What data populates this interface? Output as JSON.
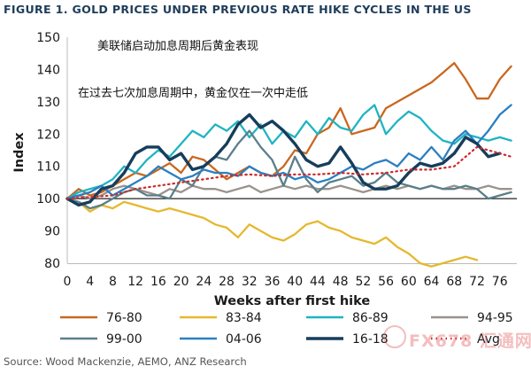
{
  "figure_title": "FIGURE 1. GOLD PRICES UNDER PREVIOUS RATE HIKE CYCLES IN THE US",
  "source": "Source: Wood Mackenzie, AEMO, ANZ Research",
  "watermark": "FX678 汇通网",
  "chart_data": {
    "type": "line",
    "title": "FIGURE 1. GOLD PRICES UNDER PREVIOUS RATE HIKE CYCLES IN THE US",
    "xlabel": "Weeks after first hike",
    "ylabel": "Index",
    "xlim": [
      0,
      79
    ],
    "ylim": [
      80,
      150
    ],
    "xticks": [
      0,
      4,
      8,
      12,
      16,
      20,
      24,
      28,
      32,
      36,
      40,
      44,
      48,
      52,
      56,
      60,
      64,
      68,
      72,
      76
    ],
    "yticks": [
      80,
      90,
      100,
      110,
      120,
      130,
      140,
      150
    ],
    "grid": false,
    "annotations": [
      "美联储启动加息周期后黄金表现",
      "在过去七次加息周期中，黄金仅在一次中走低"
    ],
    "legend_position": "bottom",
    "series": [
      {
        "name": "76-80",
        "color": "#c9671f",
        "x": [
          0,
          2,
          4,
          6,
          8,
          10,
          12,
          14,
          16,
          18,
          20,
          22,
          24,
          26,
          28,
          30,
          32,
          34,
          36,
          38,
          40,
          42,
          44,
          46,
          48,
          50,
          52,
          54,
          56,
          58,
          60,
          62,
          64,
          66,
          68,
          70,
          72,
          74,
          76,
          78
        ],
        "y": [
          100,
          103,
          101,
          102,
          104,
          106,
          108,
          107,
          109,
          111,
          108,
          113,
          112,
          109,
          106,
          108,
          110,
          108,
          107,
          110,
          115,
          114,
          120,
          122,
          128,
          120,
          121,
          122,
          128,
          130,
          132,
          134,
          136,
          139,
          142,
          137,
          131,
          131,
          137,
          141
        ]
      },
      {
        "name": "83-84",
        "color": "#e5b82e",
        "x": [
          0,
          2,
          4,
          6,
          8,
          10,
          12,
          14,
          16,
          18,
          20,
          22,
          24,
          26,
          28,
          30,
          32,
          34,
          36,
          38,
          40,
          42,
          44,
          46,
          48,
          50,
          52,
          54,
          56,
          58,
          60,
          62,
          64,
          66,
          68,
          70,
          72
        ],
        "y": [
          100,
          99,
          96,
          98,
          97,
          99,
          98,
          97,
          96,
          97,
          96,
          95,
          94,
          92,
          91,
          88,
          92,
          90,
          88,
          87,
          89,
          92,
          93,
          91,
          90,
          88,
          87,
          86,
          88,
          85,
          83,
          80,
          79,
          80,
          81,
          82,
          81
        ]
      },
      {
        "name": "86-89",
        "color": "#1fb4c2",
        "x": [
          0,
          2,
          4,
          6,
          8,
          10,
          12,
          14,
          16,
          18,
          20,
          22,
          24,
          26,
          28,
          30,
          32,
          34,
          36,
          38,
          40,
          42,
          44,
          46,
          48,
          50,
          52,
          54,
          56,
          58,
          60,
          62,
          64,
          66,
          68,
          70,
          72,
          74,
          76,
          78
        ],
        "y": [
          100,
          102,
          103,
          104,
          106,
          110,
          108,
          112,
          115,
          113,
          117,
          121,
          119,
          123,
          121,
          124,
          119,
          123,
          117,
          121,
          119,
          124,
          120,
          125,
          122,
          121,
          126,
          129,
          120,
          124,
          127,
          125,
          121,
          118,
          117,
          120,
          119,
          118,
          119,
          118
        ]
      },
      {
        "name": "94-95",
        "color": "#9a928b",
        "x": [
          0,
          2,
          4,
          6,
          8,
          10,
          12,
          14,
          16,
          18,
          20,
          22,
          24,
          26,
          28,
          30,
          32,
          34,
          36,
          38,
          40,
          42,
          44,
          46,
          48,
          50,
          52,
          54,
          56,
          58,
          60,
          62,
          64,
          66,
          68,
          70,
          72,
          74,
          76,
          78
        ],
        "y": [
          100,
          101,
          100,
          101,
          103,
          104,
          103,
          102,
          101,
          103,
          102,
          104,
          103,
          103,
          102,
          103,
          104,
          102,
          103,
          104,
          103,
          104,
          103,
          103,
          104,
          103,
          102,
          103,
          104,
          103,
          104,
          103,
          104,
          103,
          104,
          103,
          103,
          104,
          103,
          103
        ]
      },
      {
        "name": "99-00",
        "color": "#5a7f8a",
        "x": [
          0,
          2,
          4,
          6,
          8,
          10,
          12,
          14,
          16,
          18,
          20,
          22,
          24,
          26,
          28,
          30,
          32,
          34,
          36,
          38,
          40,
          42,
          44,
          46,
          48,
          50,
          52,
          54,
          56,
          58,
          60,
          62,
          64,
          66,
          68,
          70,
          72,
          74,
          76,
          78
        ],
        "y": [
          100,
          99,
          97,
          98,
          100,
          102,
          103,
          101,
          101,
          100,
          106,
          104,
          110,
          113,
          112,
          117,
          121,
          116,
          112,
          104,
          113,
          106,
          102,
          105,
          106,
          107,
          104,
          105,
          108,
          105,
          104,
          103,
          104,
          103,
          103,
          104,
          103,
          100,
          101,
          102
        ]
      },
      {
        "name": "04-06",
        "color": "#2b7fc1",
        "x": [
          0,
          2,
          4,
          6,
          8,
          10,
          12,
          14,
          16,
          18,
          20,
          22,
          24,
          26,
          28,
          30,
          32,
          34,
          36,
          38,
          40,
          42,
          44,
          46,
          48,
          50,
          52,
          54,
          56,
          58,
          60,
          62,
          64,
          66,
          68,
          70,
          72,
          74,
          76,
          78
        ],
        "y": [
          100,
          101,
          102,
          104,
          101,
          103,
          105,
          107,
          110,
          108,
          106,
          107,
          109,
          108,
          108,
          107,
          110,
          108,
          107,
          108,
          106,
          107,
          105,
          106,
          108,
          110,
          109,
          111,
          112,
          110,
          114,
          112,
          116,
          112,
          118,
          121,
          117,
          121,
          126,
          129
        ]
      },
      {
        "name": "16-18",
        "color": "#163d5c",
        "x": [
          0,
          2,
          4,
          6,
          8,
          10,
          12,
          14,
          16,
          18,
          20,
          22,
          24,
          26,
          28,
          30,
          32,
          34,
          36,
          38,
          40,
          42,
          44,
          46,
          48,
          50,
          52,
          54,
          56,
          58,
          60,
          62,
          64,
          66,
          68,
          70,
          72,
          74,
          76
        ],
        "y": [
          100,
          98,
          99,
          103,
          104,
          108,
          114,
          116,
          116,
          112,
          114,
          109,
          110,
          113,
          117,
          123,
          126,
          122,
          124,
          121,
          117,
          112,
          110,
          111,
          116,
          111,
          105,
          103,
          103,
          104,
          108,
          111,
          110,
          111,
          114,
          119,
          117,
          113,
          114
        ]
      },
      {
        "name": "Avg",
        "color": "#cc2a2a",
        "x": [
          0,
          4,
          8,
          12,
          16,
          20,
          24,
          28,
          32,
          36,
          40,
          44,
          48,
          52,
          56,
          60,
          64,
          68,
          72,
          76,
          78
        ],
        "y": [
          100,
          100.5,
          101,
          103,
          104,
          105,
          106,
          107,
          107.5,
          107,
          107.5,
          107.5,
          108,
          107.5,
          108,
          109,
          109,
          110,
          116,
          114,
          113
        ]
      }
    ]
  }
}
